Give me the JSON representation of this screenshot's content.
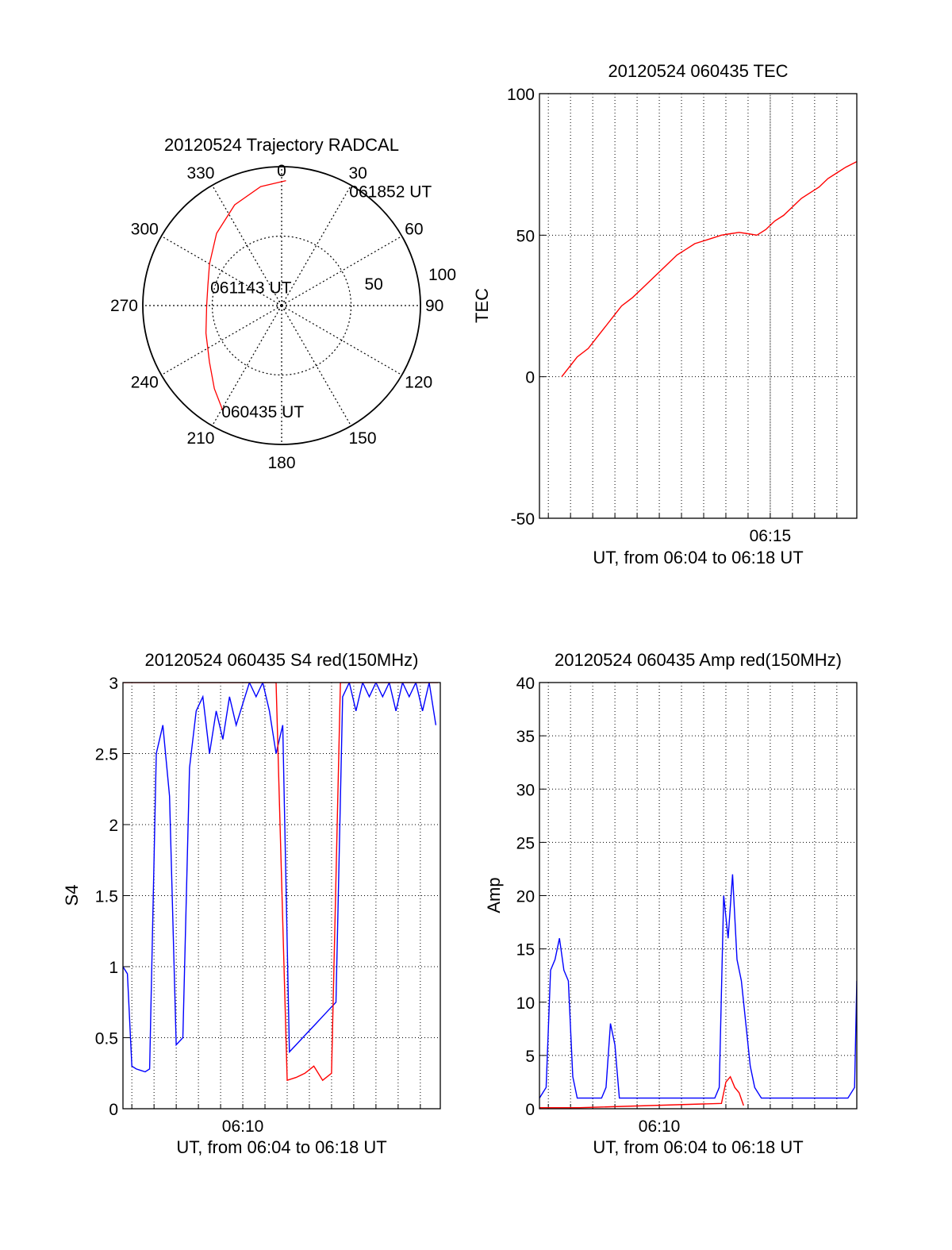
{
  "chart_data": [
    {
      "id": "trajectory",
      "type": "polar",
      "title": "20120524 Trajectory RADCAL",
      "azimuth_labels": [
        "0",
        "30",
        "60",
        "90",
        "120",
        "150",
        "180",
        "210",
        "240",
        "270",
        "300",
        "330"
      ],
      "radial_labels": [
        "50",
        "100"
      ],
      "radial_max": 100,
      "annotations": [
        {
          "text": "061852 UT",
          "az": 25,
          "r": 91
        },
        {
          "text": "061143 UT",
          "az": 285,
          "r": 52
        },
        {
          "text": "060435 UT",
          "az": 209,
          "r": 87
        }
      ],
      "trajectory": [
        {
          "az": 209,
          "r": 87
        },
        {
          "az": 219,
          "r": 77
        },
        {
          "az": 232,
          "r": 66
        },
        {
          "az": 250,
          "r": 58
        },
        {
          "az": 270,
          "r": 54
        },
        {
          "az": 285,
          "r": 55
        },
        {
          "az": 300,
          "r": 60
        },
        {
          "az": 318,
          "r": 70
        },
        {
          "az": 335,
          "r": 80
        },
        {
          "az": 350,
          "r": 87
        },
        {
          "az": 2,
          "r": 90
        }
      ],
      "line_color": "#ff0000"
    },
    {
      "id": "tec",
      "type": "line",
      "title": "20120524 060435 TEC",
      "xlabel": "UT, from 06:04 to 06:18 UT",
      "ylabel": "TEC",
      "xlim": [
        364.6,
        378.9
      ],
      "ylim": [
        -50,
        100
      ],
      "xticks": [
        {
          "value": 375,
          "label": "06:15"
        }
      ],
      "yticks": [
        -50,
        0,
        50,
        100
      ],
      "grid": true,
      "series": [
        {
          "color": "#ff0000",
          "x": [
            365.6,
            366.0,
            366.3,
            366.8,
            367.2,
            367.6,
            368.0,
            368.3,
            368.8,
            369.2,
            369.6,
            370.0,
            370.4,
            370.8,
            371.2,
            371.6,
            372.0,
            372.4,
            372.8,
            373.2,
            373.6,
            374.0,
            374.4,
            374.8,
            375.2,
            375.6,
            376.0,
            376.4,
            376.8,
            377.2,
            377.6,
            378.0,
            378.4,
            378.9
          ],
          "y": [
            0,
            4,
            7,
            10,
            14,
            18,
            22,
            25,
            28,
            31,
            34,
            37,
            40,
            43,
            45,
            47,
            48,
            49,
            50,
            50.5,
            51,
            50.5,
            50,
            52,
            55,
            57,
            60,
            63,
            65,
            67,
            70,
            72,
            74,
            76
          ]
        }
      ]
    },
    {
      "id": "s4",
      "type": "line",
      "title": "20120524 060435 S4 red(150MHz)",
      "xlabel": "UT, from 06:04 to 06:18 UT",
      "ylabel": "S4",
      "xlim": [
        364.6,
        378.9
      ],
      "ylim": [
        0,
        3
      ],
      "xticks": [
        {
          "value": 370,
          "label": "06:10"
        }
      ],
      "yticks": [
        0,
        0.5,
        1,
        1.5,
        2,
        2.5,
        3
      ],
      "yticklabels": [
        "0",
        "0.5",
        "1",
        "1.5",
        "2",
        "2.5",
        "3"
      ],
      "grid": true,
      "series": [
        {
          "color": "#0000ff",
          "x": [
            364.6,
            364.8,
            365.0,
            365.2,
            365.4,
            365.6,
            365.8,
            366.1,
            366.4,
            366.7,
            367.0,
            367.3,
            367.6,
            367.9,
            368.2,
            368.5,
            368.8,
            369.1,
            369.4,
            369.7,
            370.0,
            370.3,
            370.6,
            370.9,
            371.2,
            371.5,
            371.8,
            372.1,
            372.4,
            372.7,
            373.0,
            373.3,
            373.6,
            373.9,
            374.2,
            374.5,
            374.8,
            375.1,
            375.4,
            375.7,
            376.0,
            376.3,
            376.6,
            376.9,
            377.2,
            377.5,
            377.8,
            378.1,
            378.4,
            378.7
          ],
          "y": [
            1.0,
            0.95,
            0.3,
            0.28,
            0.27,
            0.26,
            0.28,
            2.5,
            2.7,
            2.2,
            0.45,
            0.5,
            2.4,
            2.8,
            2.9,
            2.5,
            2.8,
            2.6,
            2.9,
            2.7,
            2.85,
            3.0,
            2.9,
            3.0,
            2.8,
            2.5,
            2.7,
            0.4,
            0.45,
            0.5,
            0.55,
            0.6,
            0.65,
            0.7,
            0.75,
            2.9,
            3.0,
            2.8,
            3.0,
            2.9,
            3.0,
            2.9,
            3.0,
            2.8,
            3.0,
            2.9,
            3.0,
            2.8,
            3.0,
            2.7
          ]
        },
        {
          "color": "#ff0000",
          "x": [
            364.6,
            364.9,
            365.3,
            365.7,
            366.0,
            366.4,
            366.8,
            367.2,
            367.6,
            368.0,
            368.5,
            369.0,
            369.5,
            370.0,
            370.5,
            371.0,
            371.5,
            372.0,
            372.4,
            372.8,
            373.2,
            373.6,
            374.0,
            374.4,
            374.8,
            375.2,
            375.6,
            376.0,
            376.4,
            376.8,
            377.2,
            377.6,
            378.0,
            378.4,
            378.8
          ],
          "y": [
            3.0,
            3.0,
            3.0,
            3.0,
            3.0,
            3.0,
            3.0,
            3.0,
            3.0,
            3.0,
            3.0,
            3.0,
            3.0,
            3.0,
            3.0,
            3.0,
            3.0,
            0.2,
            0.22,
            0.25,
            0.3,
            0.2,
            0.25,
            3.0,
            3.0,
            3.0,
            3.0,
            3.0,
            3.0,
            3.0,
            3.0,
            3.0,
            3.0,
            3.0,
            3.0
          ]
        }
      ]
    },
    {
      "id": "amp",
      "type": "line",
      "title": "20120524 060435 Amp red(150MHz)",
      "xlabel": "UT, from 06:04 to 06:18 UT",
      "ylabel": "Amp",
      "xlim": [
        364.6,
        378.9
      ],
      "ylim": [
        0,
        40
      ],
      "xticks": [
        {
          "value": 370,
          "label": "06:10"
        }
      ],
      "yticks": [
        0,
        5,
        10,
        15,
        20,
        25,
        30,
        35,
        40
      ],
      "grid": true,
      "series": [
        {
          "color": "#0000ff",
          "x": [
            364.6,
            364.9,
            365.1,
            365.3,
            365.5,
            365.7,
            365.9,
            366.1,
            366.3,
            366.6,
            367.0,
            367.4,
            367.6,
            367.8,
            368.0,
            368.2,
            368.6,
            369.0,
            369.5,
            370.0,
            370.5,
            371.0,
            371.5,
            372.0,
            372.5,
            372.7,
            372.9,
            373.1,
            373.3,
            373.5,
            373.7,
            373.9,
            374.1,
            374.3,
            374.6,
            375.0,
            375.5,
            376.0,
            376.5,
            377.0,
            377.5,
            378.0,
            378.5,
            378.8,
            378.9
          ],
          "y": [
            1,
            2,
            13,
            14,
            16,
            13,
            12,
            3,
            1,
            1,
            1,
            1,
            2,
            8,
            6,
            1,
            1,
            1,
            1,
            1,
            1,
            1,
            1,
            1,
            1,
            2,
            20,
            16,
            22,
            14,
            12,
            8,
            4,
            2,
            1,
            1,
            1,
            1,
            1,
            1,
            1,
            1,
            1,
            2,
            12
          ]
        },
        {
          "color": "#ff0000",
          "x": [
            364.6,
            365.4,
            366.0,
            366.4,
            372.8,
            373.0,
            373.2,
            373.4,
            373.6,
            373.8
          ],
          "y": [
            0.1,
            0.1,
            0.1,
            0.1,
            0.5,
            2.5,
            3.0,
            2.0,
            1.5,
            0.3
          ]
        }
      ]
    }
  ]
}
